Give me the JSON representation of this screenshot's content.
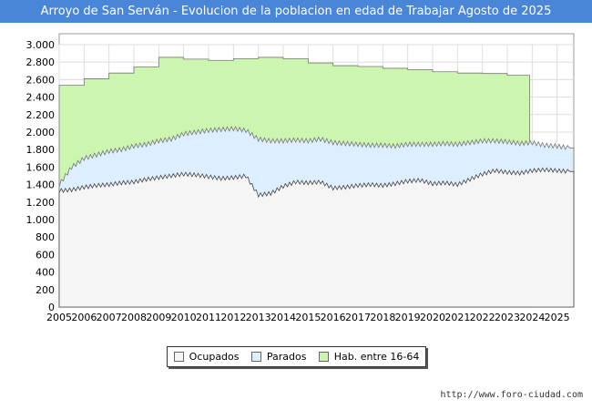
{
  "chart_data": {
    "type": "area",
    "title": "Arroyo de San Serván - Evolucion de la poblacion en edad de Trabajar Agosto de 2025",
    "xlabel": "",
    "ylabel": "",
    "ylim": [
      0,
      3000
    ],
    "yticks": [
      0,
      200,
      400,
      600,
      800,
      1000,
      1200,
      1400,
      1600,
      1800,
      2000,
      2200,
      2400,
      2600,
      2800,
      3000
    ],
    "ytick_labels": [
      "0",
      "200",
      "400",
      "600",
      "800",
      "1.000",
      "1.200",
      "1.400",
      "1.600",
      "1.800",
      "2.000",
      "2.200",
      "2.400",
      "2.600",
      "2.800",
      "3.000"
    ],
    "xticks": [
      "2005",
      "2006",
      "2007",
      "2008",
      "2009",
      "2010",
      "2011",
      "2012",
      "2013",
      "2014",
      "2015",
      "2016",
      "2017",
      "2018",
      "2019",
      "2020",
      "2021",
      "2022",
      "2023",
      "2024",
      "2025"
    ],
    "xlim": [
      2005,
      2025.67
    ],
    "colors": {
      "hab": "#ccf5b0",
      "parados": "#ddeeff",
      "ocupados": "#f5f5f5",
      "line": "#777777"
    },
    "series": [
      {
        "name": "Hab. entre 16-64",
        "x": [
          2005,
          2006,
          2007,
          2008,
          2009,
          2010,
          2011,
          2012,
          2013,
          2014,
          2015,
          2016,
          2017,
          2018,
          2019,
          2020,
          2021,
          2022,
          2023
        ],
        "values": [
          2535,
          2610,
          2675,
          2745,
          2855,
          2835,
          2820,
          2840,
          2855,
          2840,
          2790,
          2760,
          2750,
          2730,
          2715,
          2690,
          2675,
          2670,
          2650
        ]
      },
      {
        "name": "Parados",
        "x": [
          2005,
          2005.5,
          2006,
          2006.5,
          2007,
          2007.5,
          2008,
          2008.5,
          2009,
          2009.5,
          2010,
          2010.5,
          2011,
          2011.5,
          2012,
          2012.5,
          2013,
          2013.5,
          2014,
          2014.5,
          2015,
          2015.5,
          2016,
          2016.5,
          2017,
          2017.5,
          2018,
          2018.5,
          2019,
          2019.5,
          2020,
          2020.5,
          2021,
          2021.5,
          2022,
          2022.5,
          2023,
          2023.5,
          2024,
          2024.5,
          2025,
          2025.5
        ],
        "values": [
          1400,
          1600,
          1700,
          1740,
          1780,
          1800,
          1840,
          1860,
          1900,
          1920,
          1980,
          2000,
          2020,
          2030,
          2040,
          2020,
          1920,
          1900,
          1900,
          1910,
          1900,
          1920,
          1880,
          1870,
          1860,
          1850,
          1850,
          1840,
          1860,
          1860,
          1860,
          1870,
          1860,
          1880,
          1900,
          1900,
          1890,
          1870,
          1880,
          1850,
          1840,
          1820
        ]
      },
      {
        "name": "Ocupados",
        "x": [
          2005,
          2005.5,
          2006,
          2006.5,
          2007,
          2007.5,
          2008,
          2008.5,
          2009,
          2009.5,
          2010,
          2010.5,
          2011,
          2011.5,
          2012,
          2012.5,
          2013,
          2013.5,
          2014,
          2014.5,
          2015,
          2015.5,
          2016,
          2016.5,
          2017,
          2017.5,
          2018,
          2018.5,
          2019,
          2019.5,
          2020,
          2020.5,
          2021,
          2021.5,
          2022,
          2022.5,
          2023,
          2023.5,
          2024,
          2024.5,
          2025,
          2025.5
        ],
        "values": [
          1330,
          1340,
          1370,
          1390,
          1400,
          1420,
          1430,
          1460,
          1480,
          1500,
          1520,
          1510,
          1490,
          1470,
          1480,
          1500,
          1280,
          1300,
          1380,
          1430,
          1420,
          1430,
          1360,
          1370,
          1390,
          1400,
          1390,
          1410,
          1440,
          1450,
          1410,
          1420,
          1400,
          1460,
          1520,
          1560,
          1540,
          1530,
          1560,
          1570,
          1560,
          1550
        ]
      }
    ]
  },
  "legend": {
    "items": [
      {
        "label": "Ocupados",
        "color": "#f5f5f5"
      },
      {
        "label": "Parados",
        "color": "#ddeeff"
      },
      {
        "label": "Hab. entre 16-64",
        "color": "#ccf5b0"
      }
    ]
  },
  "footer": {
    "url": "http://www.foro-ciudad.com"
  }
}
